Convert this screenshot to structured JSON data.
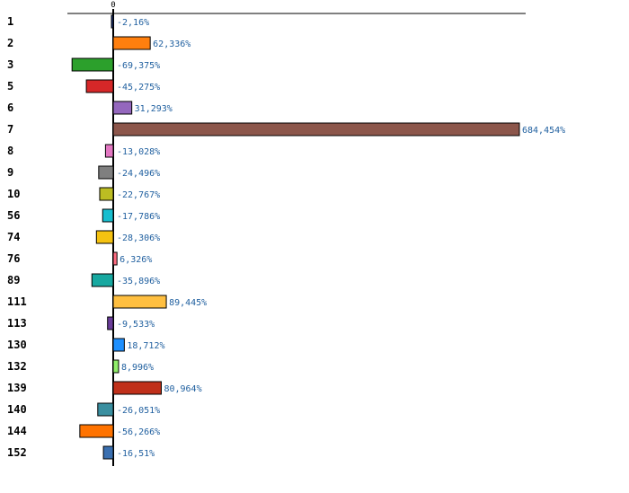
{
  "chart_data": {
    "type": "bar",
    "orientation": "horizontal",
    "categories": [
      "1",
      "2",
      "3",
      "5",
      "6",
      "7",
      "8",
      "9",
      "10",
      "56",
      "74",
      "76",
      "89",
      "111",
      "113",
      "130",
      "132",
      "139",
      "140",
      "144",
      "152"
    ],
    "values": [
      -2.16,
      62.336,
      -69.375,
      -45.275,
      31.293,
      684.454,
      -13.028,
      -24.496,
      -22.767,
      -17.786,
      -28.306,
      6.326,
      -35.896,
      89.445,
      -9.533,
      18.712,
      8.996,
      80.964,
      -26.051,
      -56.266,
      -16.51
    ],
    "value_labels": [
      "-2,16%",
      "62,336%",
      "-69,375%",
      "-45,275%",
      "31,293%",
      "684,454%",
      "-13,028%",
      "-24,496%",
      "-22,767%",
      "-17,786%",
      "-28,306%",
      "6,326%",
      "-35,896%",
      "89,445%",
      "-9,533%",
      "18,712%",
      "8,996%",
      "80,964%",
      "-26,051%",
      "-56,266%",
      "-16,51%"
    ],
    "zero_tick_label": "0",
    "colors": [
      "#1f3a8a",
      "#ff7f0e",
      "#2ca02c",
      "#d62728",
      "#9467bd",
      "#8c564b",
      "#e377c2",
      "#7f7f7f",
      "#bcbd22",
      "#17becf",
      "#f5c211",
      "#ff6b81",
      "#17a8a0",
      "#ffbf40",
      "#6a3d9a",
      "#1e90ff",
      "#90ee6a",
      "#c0301a",
      "#3a8fa0",
      "#ff7300",
      "#3a6fb0"
    ],
    "grid": false,
    "legend": "none"
  }
}
